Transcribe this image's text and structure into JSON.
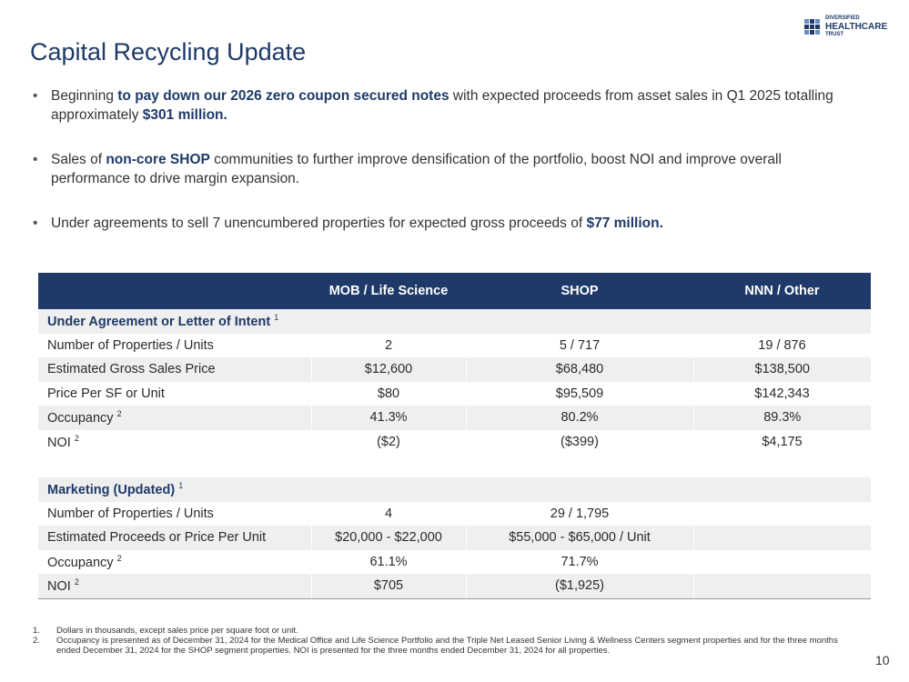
{
  "title": "Capital Recycling Update",
  "logo": {
    "line1": "DIVERSIFIED",
    "line2": "HEALTHCARE",
    "line3": "TRUST"
  },
  "bullets": [
    {
      "pre": "Beginning ",
      "bold": "to pay down our 2026 zero coupon secured notes",
      "mid": " with expected proceeds from asset sales in Q1 2025 totalling approximately ",
      "bold2": "$301 million."
    },
    {
      "pre": "Sales of ",
      "bold": "non-core SHOP",
      "mid": " communities to further improve densification of the portfolio, boost NOI and improve overall performance to drive margin expansion.",
      "bold2": ""
    },
    {
      "pre": "Under agreements to sell 7 unencumbered properties for expected gross proceeds of ",
      "bold": "$77 million.",
      "mid": "",
      "bold2": ""
    }
  ],
  "table": {
    "headers": [
      "",
      "MOB / Life Science",
      "SHOP",
      "NNN / Other"
    ],
    "section1": {
      "title": "Under Agreement or Letter of Intent",
      "sup": "1",
      "rows": [
        {
          "label": "Number of Properties / Units",
          "sup": "",
          "v": [
            "2",
            "5 / 717",
            "19 / 876"
          ]
        },
        {
          "label": "Estimated Gross Sales Price",
          "sup": "",
          "v": [
            "$12,600",
            "$68,480",
            "$138,500"
          ]
        },
        {
          "label": "Price Per SF or Unit",
          "sup": "",
          "v": [
            "$80",
            "$95,509",
            "$142,343"
          ]
        },
        {
          "label": "Occupancy",
          "sup": "2",
          "v": [
            "41.3%",
            "80.2%",
            "89.3%"
          ]
        },
        {
          "label": "NOI",
          "sup": "2",
          "v": [
            "($2)",
            "($399)",
            "$4,175"
          ]
        }
      ]
    },
    "section2": {
      "title": "Marketing (Updated)",
      "sup": "1",
      "rows": [
        {
          "label": "Number of Properties / Units",
          "sup": "",
          "v": [
            "4",
            "29 / 1,795",
            ""
          ]
        },
        {
          "label": "Estimated Proceeds or Price Per Unit",
          "sup": "",
          "v": [
            "$20,000 - $22,000",
            "$55,000 - $65,000 / Unit",
            ""
          ]
        },
        {
          "label": "Occupancy",
          "sup": "2",
          "v": [
            "61.1%",
            "71.7%",
            ""
          ]
        },
        {
          "label": "NOI",
          "sup": "2",
          "v": [
            "$705",
            "($1,925)",
            ""
          ]
        }
      ]
    }
  },
  "footnotes": [
    {
      "n": "1.",
      "text": "Dollars in thousands, except sales price per square foot or unit."
    },
    {
      "n": "2.",
      "text": "Occupancy is presented as of December 31, 2024 for the Medical Office and Life Science Portfolio and the Triple Net Leased Senior Living & Wellness Centers segment properties and for the three months ended December 31, 2024 for the SHOP segment properties. NOI is presented for the three months ended December 31, 2024 for all properties."
    }
  ],
  "page_number": "10",
  "colors": {
    "navy": "#1f3a68",
    "row_gray": "#efefef"
  }
}
